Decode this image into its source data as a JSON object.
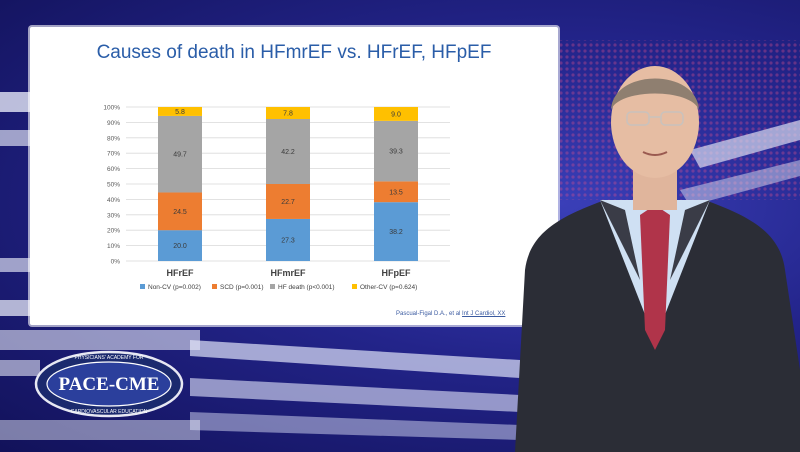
{
  "slide": {
    "title": "Causes of death in HFmrEF vs. HFrEF, HFpEF",
    "citation_authors": "Pascual-Figal D.A., et al",
    "citation_journal": "Int J Cardiol, XX"
  },
  "logo": {
    "name": "PACE-CME",
    "arc_top": "PHYSICIANS' ACADEMY FOR",
    "arc_bottom": "CARDIOVASCULAR EDUCATION"
  },
  "colors": {
    "non_cv": "#5b9bd5",
    "scd": "#ed7d31",
    "hf_death": "#a5a5a5",
    "other_cv": "#ffc000",
    "title": "#2a5da8"
  },
  "chart_data": {
    "type": "bar",
    "stacked": true,
    "categories": [
      "HFrEF",
      "HFmrEF",
      "HFpEF"
    ],
    "series": [
      {
        "name": "Non-CV (p=0.002)",
        "values": [
          20.0,
          27.3,
          38.2
        ]
      },
      {
        "name": "SCD (p=0.001)",
        "values": [
          24.5,
          22.7,
          13.5
        ]
      },
      {
        "name": "HF death (p<0.001)",
        "values": [
          49.7,
          42.2,
          39.3
        ]
      },
      {
        "name": "Other-CV (p=0.624)",
        "values": [
          5.8,
          7.8,
          9.0
        ]
      }
    ],
    "data_labels": [
      [
        "20.0",
        "27.3",
        "38.2"
      ],
      [
        "24.5",
        "22.7",
        "13.5"
      ],
      [
        "49.7",
        "42.2",
        "39.3"
      ],
      [
        "5.8",
        "7.8",
        "9.0"
      ]
    ],
    "yticks": [
      "0%",
      "10%",
      "20%",
      "30%",
      "40%",
      "50%",
      "60%",
      "70%",
      "80%",
      "90%",
      "100%"
    ],
    "ylim": [
      0,
      100
    ],
    "grid": true,
    "legend": "bottom"
  }
}
